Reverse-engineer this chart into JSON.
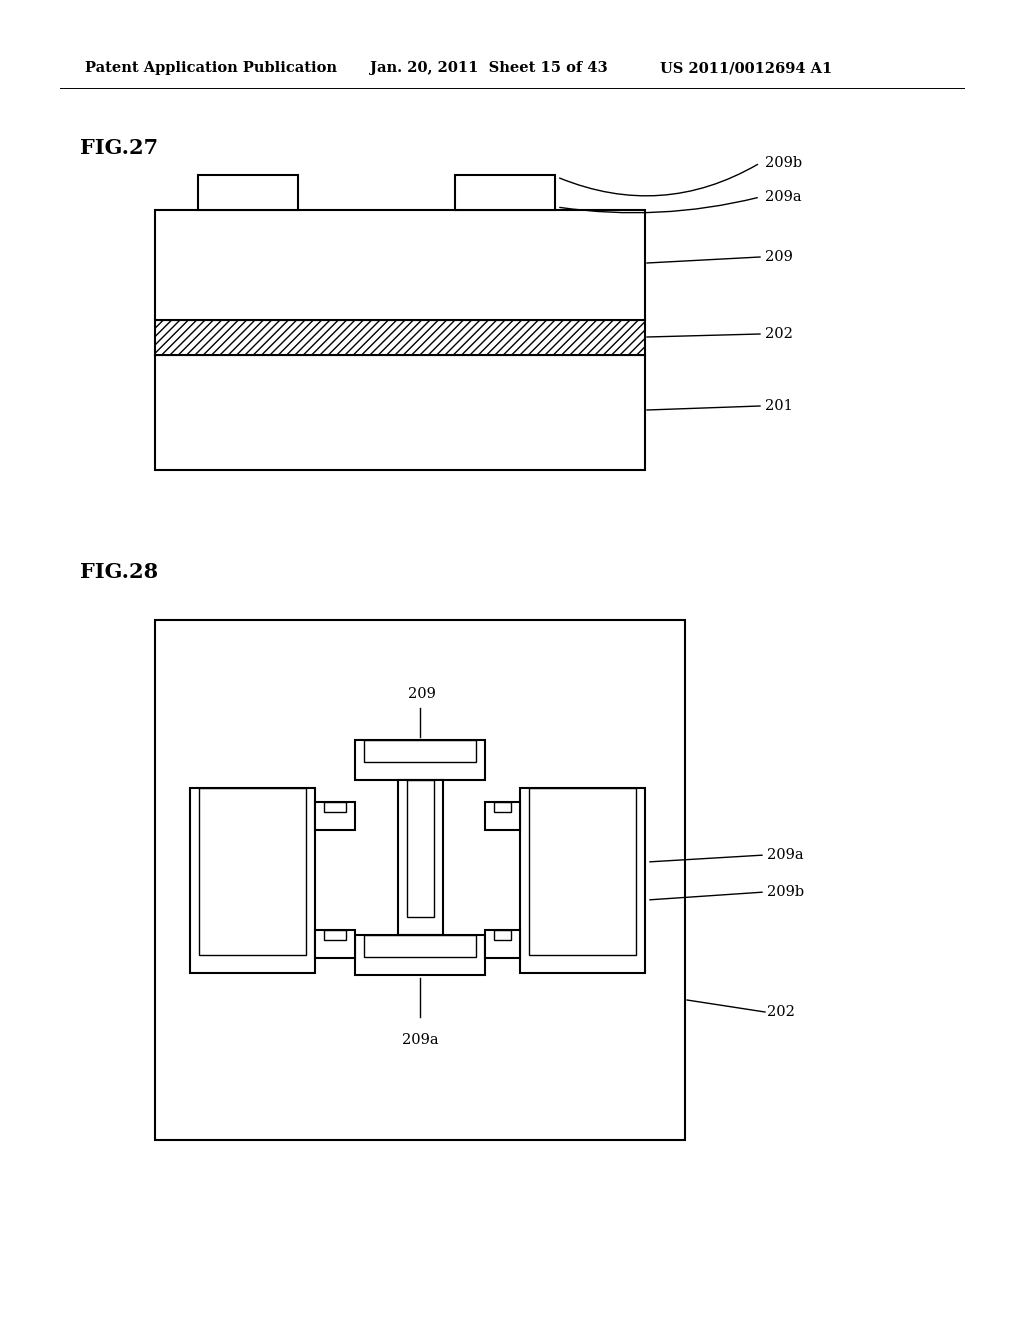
{
  "bg_color": "#ffffff",
  "header_left": "Patent Application Publication",
  "header_mid": "Jan. 20, 2011  Sheet 15 of 43",
  "header_right": "US 2011/0012694 A1",
  "fig27_label": "FIG.27",
  "fig28_label": "FIG.28",
  "lw_main": 1.5,
  "lw_thin": 1.0
}
